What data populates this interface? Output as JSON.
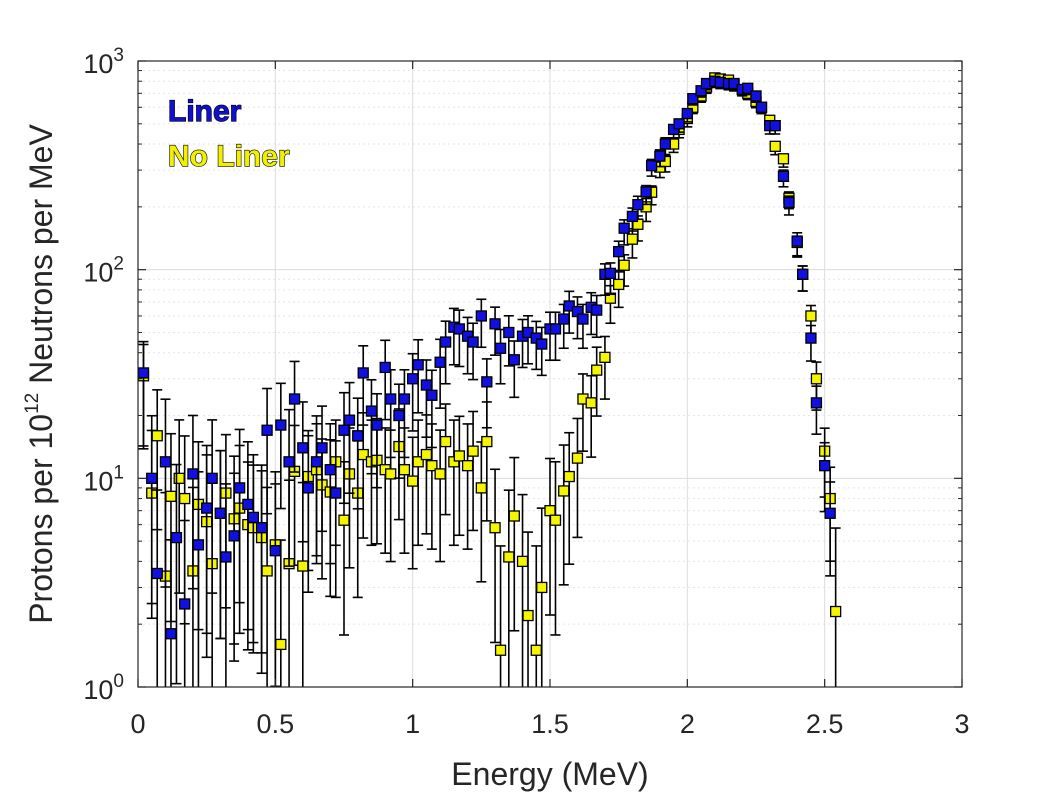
{
  "chart_data": {
    "type": "scatter",
    "title": "",
    "xlabel": "Energy (MeV)",
    "ylabel": {
      "before": "Protons per 10",
      "sup": "12",
      "after": " Neutrons per MeV"
    },
    "xlim": [
      0,
      3
    ],
    "ylim": [
      1,
      1000
    ],
    "yscale": "log",
    "grid": true,
    "legend_position": "top-left",
    "x_ticks": [
      "0",
      "0.5",
      "1",
      "1.5",
      "2",
      "2.5",
      "3"
    ],
    "x_tick_values": [
      0,
      0.5,
      1,
      1.5,
      2,
      2.5,
      3
    ],
    "y_ticks": [
      {
        "base": "10",
        "exp": "0"
      },
      {
        "base": "10",
        "exp": "1"
      },
      {
        "base": "10",
        "exp": "2"
      },
      {
        "base": "10",
        "exp": "3"
      }
    ],
    "y_tick_values": [
      1,
      10,
      100,
      1000
    ],
    "series": [
      {
        "name": "Liner",
        "color": "#1010E0",
        "outline_color": "#000000",
        "legend_text_color": "#1010D0",
        "x": [
          0.02,
          0.05,
          0.07,
          0.1,
          0.12,
          0.14,
          0.17,
          0.2,
          0.22,
          0.25,
          0.27,
          0.3,
          0.32,
          0.35,
          0.37,
          0.4,
          0.42,
          0.45,
          0.47,
          0.5,
          0.52,
          0.55,
          0.57,
          0.6,
          0.62,
          0.65,
          0.67,
          0.7,
          0.72,
          0.75,
          0.77,
          0.8,
          0.82,
          0.85,
          0.87,
          0.9,
          0.92,
          0.95,
          0.97,
          1.0,
          1.02,
          1.05,
          1.07,
          1.1,
          1.12,
          1.15,
          1.17,
          1.2,
          1.22,
          1.25,
          1.27,
          1.3,
          1.32,
          1.35,
          1.37,
          1.4,
          1.42,
          1.45,
          1.47,
          1.5,
          1.52,
          1.55,
          1.57,
          1.6,
          1.62,
          1.65,
          1.67,
          1.7,
          1.72,
          1.75,
          1.77,
          1.8,
          1.82,
          1.85,
          1.87,
          1.9,
          1.92,
          1.95,
          1.97,
          2.0,
          2.02,
          2.05,
          2.07,
          2.1,
          2.12,
          2.15,
          2.17,
          2.2,
          2.22,
          2.25,
          2.27,
          2.3,
          2.32,
          2.35,
          2.37,
          2.4,
          2.42,
          2.45,
          2.47,
          2.5,
          2.52
        ],
        "y": [
          32,
          10,
          3.5,
          12,
          1.8,
          5.2,
          2.5,
          10.5,
          4.8,
          7.2,
          10,
          6.8,
          4.2,
          5.3,
          9,
          7.5,
          6.5,
          5.8,
          17,
          4.5,
          18,
          12,
          24,
          14,
          9,
          12,
          14,
          11,
          8.5,
          17,
          19,
          16,
          32,
          21,
          18,
          34,
          24,
          20,
          24,
          30,
          35,
          28,
          25,
          36,
          45,
          53,
          52,
          48,
          45,
          60,
          29,
          55,
          42,
          50,
          37,
          48,
          50,
          47,
          44,
          52,
          52,
          58,
          67,
          63,
          58,
          66,
          64,
          95,
          96,
          122,
          158,
          180,
          205,
          236,
          315,
          350,
          400,
          470,
          500,
          560,
          660,
          720,
          780,
          800,
          790,
          780,
          780,
          730,
          740,
          680,
          600,
          490,
          490,
          280,
          210,
          137,
          95,
          47,
          23,
          11.5,
          6.8
        ],
        "err_lo": [
          0.35,
          0.6,
          0.75,
          0.6,
          0.75,
          0.7,
          0.75,
          0.55,
          0.7,
          0.6,
          0.55,
          0.6,
          0.7,
          0.6,
          0.55,
          0.6,
          0.6,
          0.6,
          0.4,
          0.65,
          0.4,
          0.5,
          0.35,
          0.45,
          0.5,
          0.45,
          0.4,
          0.45,
          0.5,
          0.35,
          0.35,
          0.35,
          0.25,
          0.3,
          0.3,
          0.25,
          0.28,
          0.3,
          0.28,
          0.25,
          0.23,
          0.25,
          0.25,
          0.22,
          0.2,
          0.18,
          0.18,
          0.18,
          0.18,
          0.15,
          0.22,
          0.15,
          0.17,
          0.16,
          0.18,
          0.15,
          0.15,
          0.15,
          0.15,
          0.15,
          0.15,
          0.14,
          0.13,
          0.13,
          0.14,
          0.13,
          0.13,
          0.1,
          0.1,
          0.09,
          0.08,
          0.07,
          0.07,
          0.06,
          0.05,
          0.05,
          0.05,
          0.04,
          0.04,
          0.04,
          0.03,
          0.03,
          0.03,
          0.03,
          0.03,
          0.03,
          0.03,
          0.03,
          0.03,
          0.03,
          0.03,
          0.04,
          0.04,
          0.05,
          0.06,
          0.07,
          0.08,
          0.11,
          0.15,
          0.22,
          0.3
        ],
        "err_hi": [
          0.15,
          0.3,
          0.4,
          0.3,
          0.45,
          0.35,
          0.4,
          0.28,
          0.35,
          0.3,
          0.28,
          0.3,
          0.35,
          0.3,
          0.28,
          0.3,
          0.3,
          0.3,
          0.2,
          0.32,
          0.2,
          0.25,
          0.18,
          0.22,
          0.25,
          0.22,
          0.2,
          0.22,
          0.25,
          0.18,
          0.18,
          0.18,
          0.13,
          0.15,
          0.15,
          0.13,
          0.14,
          0.15,
          0.14,
          0.12,
          0.12,
          0.12,
          0.12,
          0.11,
          0.1,
          0.09,
          0.09,
          0.09,
          0.09,
          0.08,
          0.11,
          0.08,
          0.09,
          0.08,
          0.09,
          0.08,
          0.08,
          0.08,
          0.08,
          0.08,
          0.08,
          0.07,
          0.07,
          0.07,
          0.07,
          0.07,
          0.07,
          0.05,
          0.05,
          0.05,
          0.04,
          0.04,
          0.04,
          0.03,
          0.03,
          0.03,
          0.03,
          0.02,
          0.02,
          0.02,
          0.02,
          0.02,
          0.02,
          0.02,
          0.02,
          0.02,
          0.02,
          0.02,
          0.02,
          0.02,
          0.02,
          0.02,
          0.02,
          0.03,
          0.03,
          0.04,
          0.04,
          0.06,
          0.08,
          0.11,
          0.15
        ]
      },
      {
        "name": "No Liner",
        "color": "#F5F500",
        "outline_color": "#000000",
        "legend_text_color": "#F0F000",
        "x": [
          0.02,
          0.05,
          0.07,
          0.1,
          0.12,
          0.15,
          0.17,
          0.2,
          0.22,
          0.25,
          0.27,
          0.3,
          0.32,
          0.35,
          0.37,
          0.4,
          0.42,
          0.45,
          0.47,
          0.5,
          0.52,
          0.55,
          0.57,
          0.6,
          0.62,
          0.65,
          0.67,
          0.7,
          0.72,
          0.75,
          0.77,
          0.8,
          0.82,
          0.85,
          0.87,
          0.9,
          0.92,
          0.95,
          0.97,
          1.0,
          1.02,
          1.05,
          1.07,
          1.1,
          1.12,
          1.15,
          1.17,
          1.2,
          1.22,
          1.25,
          1.27,
          1.3,
          1.32,
          1.35,
          1.37,
          1.4,
          1.42,
          1.45,
          1.47,
          1.5,
          1.52,
          1.55,
          1.57,
          1.6,
          1.62,
          1.65,
          1.67,
          1.7,
          1.72,
          1.75,
          1.77,
          1.8,
          1.82,
          1.85,
          1.87,
          1.9,
          1.92,
          1.95,
          1.97,
          2.0,
          2.02,
          2.05,
          2.07,
          2.1,
          2.12,
          2.15,
          2.17,
          2.2,
          2.22,
          2.25,
          2.27,
          2.3,
          2.32,
          2.35,
          2.37,
          2.4,
          2.42,
          2.45,
          2.47,
          2.5,
          2.52,
          2.54
        ],
        "y": [
          31,
          8.5,
          16,
          3.4,
          8.2,
          10,
          8,
          3.6,
          7.5,
          6.2,
          3.9,
          6.8,
          8.5,
          6.4,
          7.2,
          6,
          5.8,
          5.2,
          3.6,
          4.8,
          1.6,
          3.9,
          10.8,
          3.8,
          10.2,
          11,
          9.3,
          8.6,
          12,
          6.3,
          10.5,
          8.5,
          13,
          12,
          12.2,
          11,
          10.5,
          14.2,
          11,
          9.7,
          12,
          13,
          11.5,
          10.5,
          15,
          12,
          12.8,
          11.5,
          13.5,
          9,
          15,
          5.8,
          1.5,
          4.2,
          6.6,
          4,
          2.2,
          1.5,
          3,
          7,
          6.3,
          8.7,
          10.2,
          12.5,
          24,
          23,
          33,
          38,
          73,
          85,
          105,
          140,
          165,
          200,
          235,
          310,
          330,
          400,
          470,
          530,
          600,
          680,
          750,
          830,
          820,
          810,
          770,
          730,
          700,
          640,
          600,
          520,
          390,
          340,
          220,
          135,
          95,
          60,
          30,
          13.5,
          8,
          2.3
        ],
        "err_lo": [
          0.35,
          0.6,
          0.45,
          0.75,
          0.6,
          0.55,
          0.6,
          0.75,
          0.6,
          0.65,
          0.75,
          0.6,
          0.55,
          0.6,
          0.6,
          0.6,
          0.6,
          0.65,
          0.75,
          0.7,
          0.9,
          0.75,
          0.45,
          0.75,
          0.45,
          0.45,
          0.45,
          0.5,
          0.4,
          0.55,
          0.45,
          0.5,
          0.4,
          0.4,
          0.4,
          0.4,
          0.42,
          0.35,
          0.4,
          0.42,
          0.4,
          0.38,
          0.4,
          0.42,
          0.35,
          0.4,
          0.38,
          0.4,
          0.38,
          0.45,
          0.38,
          0.55,
          0.9,
          0.65,
          0.55,
          0.65,
          0.8,
          0.9,
          0.75,
          0.5,
          0.55,
          0.45,
          0.42,
          0.38,
          0.25,
          0.26,
          0.22,
          0.2,
          0.12,
          0.11,
          0.1,
          0.09,
          0.08,
          0.07,
          0.06,
          0.05,
          0.05,
          0.04,
          0.04,
          0.04,
          0.03,
          0.03,
          0.03,
          0.03,
          0.03,
          0.03,
          0.03,
          0.03,
          0.03,
          0.03,
          0.03,
          0.03,
          0.04,
          0.04,
          0.05,
          0.07,
          0.08,
          0.1,
          0.15,
          0.22,
          0.3,
          0.7
        ],
        "err_hi": [
          0.15,
          0.3,
          0.22,
          0.4,
          0.3,
          0.28,
          0.3,
          0.4,
          0.3,
          0.32,
          0.4,
          0.3,
          0.28,
          0.3,
          0.3,
          0.3,
          0.3,
          0.32,
          0.4,
          0.35,
          0.5,
          0.4,
          0.22,
          0.4,
          0.22,
          0.22,
          0.22,
          0.25,
          0.2,
          0.28,
          0.22,
          0.25,
          0.2,
          0.2,
          0.2,
          0.2,
          0.21,
          0.18,
          0.2,
          0.21,
          0.2,
          0.19,
          0.2,
          0.21,
          0.18,
          0.2,
          0.19,
          0.2,
          0.19,
          0.22,
          0.19,
          0.28,
          0.5,
          0.32,
          0.28,
          0.32,
          0.4,
          0.5,
          0.38,
          0.25,
          0.28,
          0.22,
          0.21,
          0.19,
          0.12,
          0.13,
          0.11,
          0.1,
          0.06,
          0.06,
          0.05,
          0.05,
          0.04,
          0.04,
          0.03,
          0.03,
          0.03,
          0.02,
          0.02,
          0.02,
          0.02,
          0.02,
          0.02,
          0.02,
          0.02,
          0.02,
          0.02,
          0.02,
          0.02,
          0.02,
          0.02,
          0.02,
          0.02,
          0.02,
          0.03,
          0.03,
          0.04,
          0.05,
          0.08,
          0.11,
          0.15,
          0.4
        ]
      }
    ]
  }
}
